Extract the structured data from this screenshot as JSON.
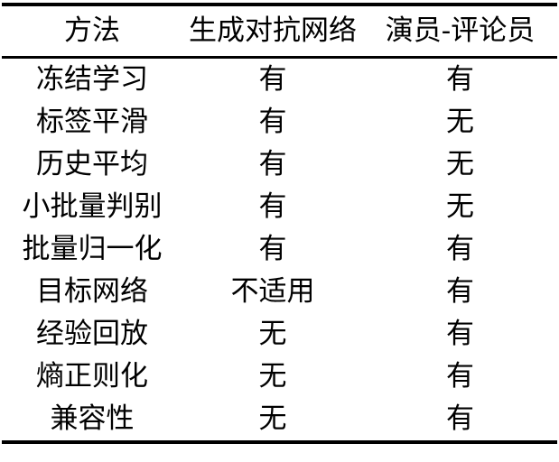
{
  "chart_data": {
    "type": "table",
    "columns": [
      "方法",
      "生成对抗网络",
      "演员-评论员"
    ],
    "rows": [
      [
        "冻结学习",
        "有",
        "有"
      ],
      [
        "标签平滑",
        "有",
        "无"
      ],
      [
        "历史平均",
        "有",
        "无"
      ],
      [
        "小批量判别",
        "有",
        "无"
      ],
      [
        "批量归一化",
        "有",
        "有"
      ],
      [
        "目标网络",
        "不适用",
        "有"
      ],
      [
        "经验回放",
        "无",
        "有"
      ],
      [
        "熵正则化",
        "无",
        "有"
      ],
      [
        "兼容性",
        "无",
        "有"
      ]
    ],
    "title": "",
    "legend_position": "none",
    "grid": "off"
  },
  "style": {
    "text_color": "#000000",
    "rule_color": "#000000",
    "background_color": "#ffffff"
  }
}
